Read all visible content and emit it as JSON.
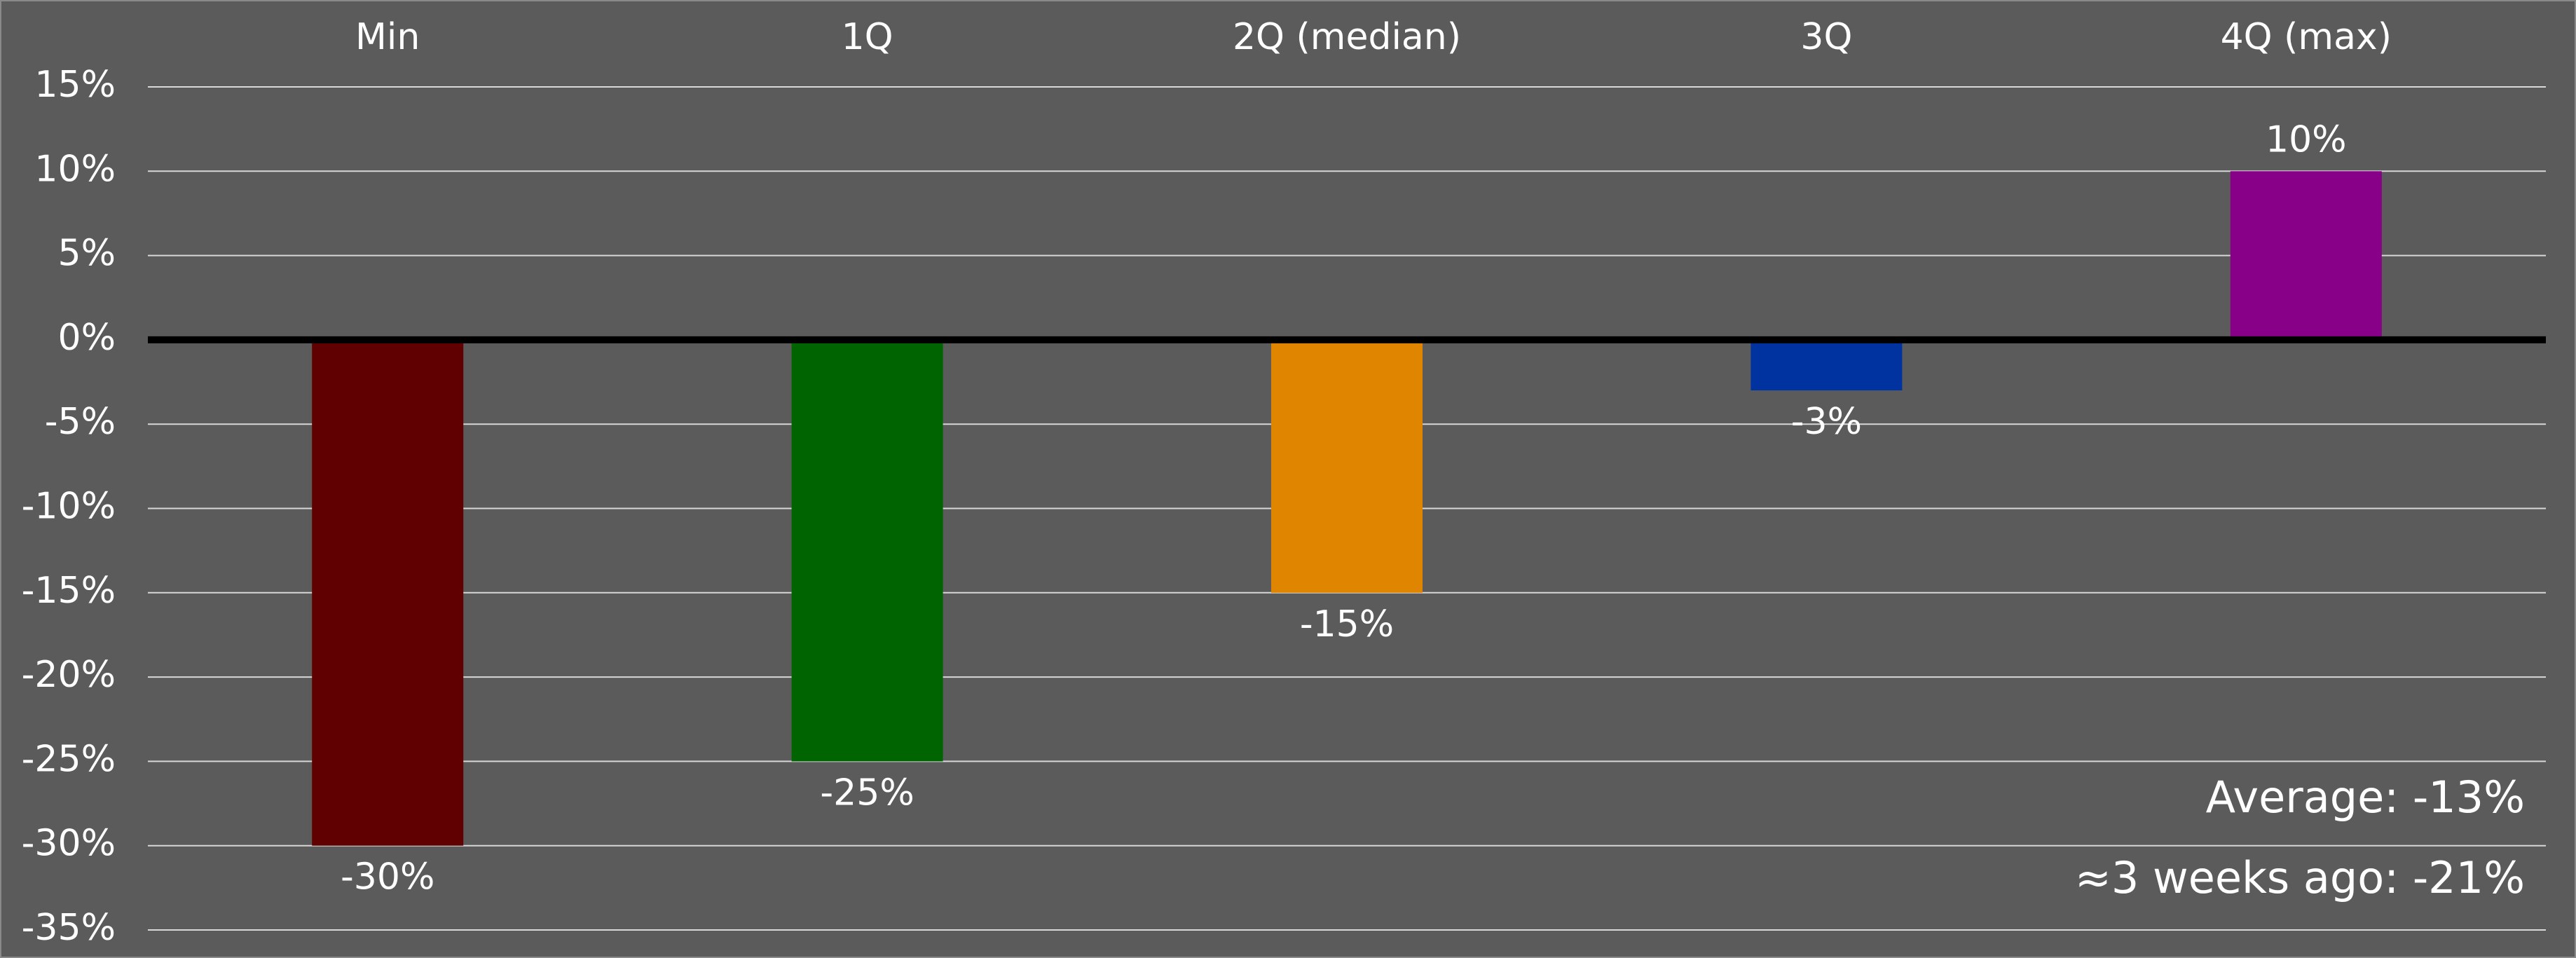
{
  "chart_data": {
    "type": "bar",
    "categories": [
      "Min",
      "1Q",
      "2Q (median)",
      "3Q",
      "4Q (max)"
    ],
    "values": [
      -30,
      -25,
      -15,
      -3,
      10
    ],
    "value_labels": [
      "-30%",
      "-25%",
      "-15%",
      "-3%",
      "10%"
    ],
    "colors": [
      "#600000",
      "#006400",
      "#e08500",
      "#0033a0",
      "#880088"
    ],
    "ylim": [
      -35,
      15
    ],
    "yticks": [
      {
        "value": 15,
        "label": "15%"
      },
      {
        "value": 10,
        "label": "10%"
      },
      {
        "value": 5,
        "label": "5%"
      },
      {
        "value": 0,
        "label": "0%"
      },
      {
        "value": -5,
        "label": "-5%"
      },
      {
        "value": -10,
        "label": "-10%"
      },
      {
        "value": -15,
        "label": "-15%"
      },
      {
        "value": -20,
        "label": "-20%"
      },
      {
        "value": -25,
        "label": "-25%"
      },
      {
        "value": -30,
        "label": "-30%"
      },
      {
        "value": -35,
        "label": "-35%"
      }
    ],
    "grid": true,
    "annotations": [
      "Average: -13%",
      "≈3 weeks ago: -21%"
    ]
  }
}
